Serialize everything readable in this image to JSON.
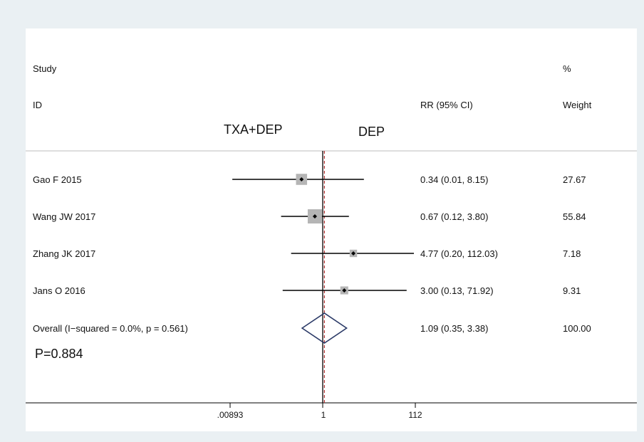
{
  "header": {
    "study": "Study",
    "id": "ID",
    "percent": "%",
    "weight": "Weight",
    "ci": "RR (95% CI)",
    "favors_left": "TXA+DEP",
    "favors_right": "DEP"
  },
  "p_value": "P=0.884",
  "colors": {
    "line": "#000000",
    "box": "#b5b5b5",
    "diamond": "#2b3a67",
    "ref_dashed": "#b03030",
    "panel": "#ffffff",
    "background": "#eaf0f3"
  },
  "chart_data": {
    "type": "forest",
    "x_scale": "log",
    "xlim": [
      0.00893,
      112
    ],
    "x_ticks": [
      {
        "value": 0.00893,
        "label": ".00893"
      },
      {
        "value": 1,
        "label": "1"
      },
      {
        "value": 112,
        "label": "112"
      }
    ],
    "reference_line": 1,
    "overall_line": 1.09,
    "studies": [
      {
        "id": "Gao F 2015",
        "rr": 0.34,
        "lower": 0.01,
        "upper": 8.15,
        "ci_text": "0.34 (0.01, 8.15)",
        "weight": 27.67,
        "weight_text": "27.67"
      },
      {
        "id": "Wang JW 2017",
        "rr": 0.67,
        "lower": 0.12,
        "upper": 3.8,
        "ci_text": "0.67 (0.12, 3.80)",
        "weight": 55.84,
        "weight_text": "55.84"
      },
      {
        "id": "Zhang JK 2017",
        "rr": 4.77,
        "lower": 0.2,
        "upper": 112.03,
        "ci_text": "4.77 (0.20, 112.03)",
        "weight": 7.18,
        "weight_text": "7.18"
      },
      {
        "id": "Jans O 2016",
        "rr": 3.0,
        "lower": 0.13,
        "upper": 71.92,
        "ci_text": "3.00 (0.13, 71.92)",
        "weight": 9.31,
        "weight_text": "9.31"
      }
    ],
    "overall": {
      "label": "Overall  (I−squared = 0.0%, p = 0.561)",
      "rr": 1.09,
      "lower": 0.35,
      "upper": 3.38,
      "ci_text": "1.09 (0.35, 3.38)",
      "weight_text": "100.00"
    }
  }
}
